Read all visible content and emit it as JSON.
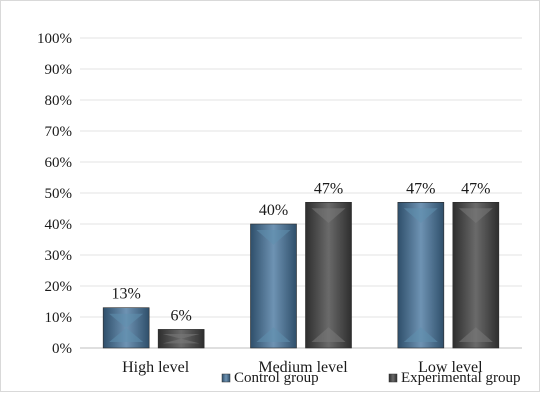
{
  "chart_data": {
    "type": "bar",
    "categories": [
      "High level",
      "Medium level",
      "Low level"
    ],
    "series": [
      {
        "name": "Control group",
        "values": [
          13,
          40,
          47
        ],
        "color": "#4a6f8f"
      },
      {
        "name": "Experimental group",
        "values": [
          6,
          47,
          47
        ],
        "color": "#4a4a4a"
      }
    ],
    "data_labels": {
      "Control group": [
        "13%",
        "40%",
        "47%"
      ],
      "Experimental group": [
        "6%",
        "47%",
        "47%"
      ]
    },
    "y_ticks": [
      "0%",
      "10%",
      "20%",
      "30%",
      "40%",
      "50%",
      "60%",
      "70%",
      "80%",
      "90%",
      "100%"
    ],
    "ylim": [
      0,
      100
    ],
    "grid": true,
    "legend_position": "bottom"
  }
}
